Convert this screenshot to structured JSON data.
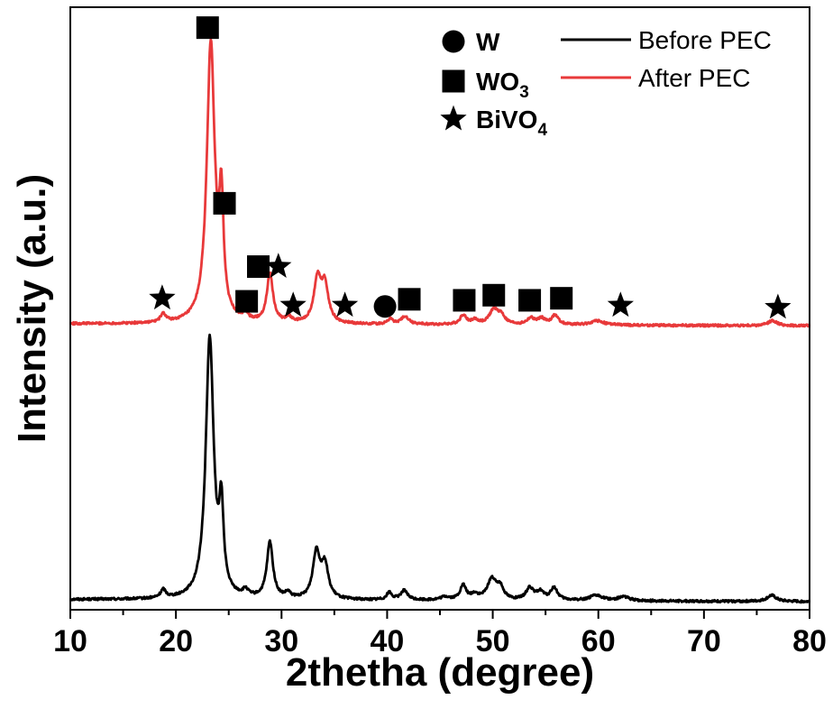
{
  "chart_data": {
    "type": "line",
    "title": "",
    "xlabel": "2thetha (degree)",
    "ylabel": "Intensity (a.u.)",
    "xlim": [
      10,
      80
    ],
    "x_ticks": [
      "10",
      "20",
      "30",
      "40",
      "50",
      "60",
      "70",
      "80"
    ],
    "y_ticks_shown": false,
    "grid": false,
    "legend": {
      "placement": "top-right",
      "lines": [
        {
          "label": "Before PEC",
          "color": "#000000"
        },
        {
          "label": "After PEC",
          "color": "#e8393a"
        }
      ],
      "markers": [
        {
          "symbol": "circle",
          "label": "W",
          "label_sub": ""
        },
        {
          "symbol": "square",
          "label": "WO",
          "label_sub": "3"
        },
        {
          "symbol": "star",
          "label": "BiVO",
          "label_sub": "4"
        }
      ]
    },
    "series": [
      {
        "name": "Before PEC",
        "color": "#000000",
        "baseline": 10,
        "baseline_slope": -2,
        "peaks": [
          {
            "x": 18.8,
            "h": 8,
            "w": 0.3
          },
          {
            "x": 23.2,
            "h": 255,
            "w": 0.45
          },
          {
            "x": 24.3,
            "h": 78,
            "w": 0.25
          },
          {
            "x": 26.6,
            "h": 6,
            "w": 0.3
          },
          {
            "x": 28.9,
            "h": 55,
            "w": 0.35
          },
          {
            "x": 30.6,
            "h": 5,
            "w": 0.3
          },
          {
            "x": 33.3,
            "h": 45,
            "w": 0.4
          },
          {
            "x": 34.1,
            "h": 32,
            "w": 0.4
          },
          {
            "x": 40.2,
            "h": 7,
            "w": 0.3
          },
          {
            "x": 41.6,
            "h": 9,
            "w": 0.4
          },
          {
            "x": 45.5,
            "h": 3,
            "w": 0.5
          },
          {
            "x": 47.2,
            "h": 14,
            "w": 0.35
          },
          {
            "x": 48.3,
            "h": 5,
            "w": 0.4
          },
          {
            "x": 49.9,
            "h": 20,
            "w": 0.5
          },
          {
            "x": 50.7,
            "h": 12,
            "w": 0.4
          },
          {
            "x": 53.5,
            "h": 12,
            "w": 0.4
          },
          {
            "x": 54.5,
            "h": 8,
            "w": 0.4
          },
          {
            "x": 55.8,
            "h": 12,
            "w": 0.4
          },
          {
            "x": 59.8,
            "h": 5,
            "w": 0.8
          },
          {
            "x": 62.4,
            "h": 4,
            "w": 0.6
          },
          {
            "x": 76.4,
            "h": 6,
            "w": 0.5
          }
        ]
      },
      {
        "name": "After PEC",
        "color": "#e8393a",
        "baseline": 280,
        "baseline_slope": -2,
        "peaks": [
          {
            "x": 18.8,
            "h": 8,
            "w": 0.3
          },
          {
            "x": 23.3,
            "h": 272,
            "w": 0.45
          },
          {
            "x": 24.3,
            "h": 105,
            "w": 0.25
          },
          {
            "x": 26.6,
            "h": 6,
            "w": 0.3
          },
          {
            "x": 28.9,
            "h": 48,
            "w": 0.35
          },
          {
            "x": 30.7,
            "h": 5,
            "w": 0.3
          },
          {
            "x": 33.4,
            "h": 42,
            "w": 0.4
          },
          {
            "x": 34.1,
            "h": 36,
            "w": 0.4
          },
          {
            "x": 40.3,
            "h": 5,
            "w": 0.3
          },
          {
            "x": 41.7,
            "h": 8,
            "w": 0.4
          },
          {
            "x": 47.2,
            "h": 9,
            "w": 0.35
          },
          {
            "x": 48.3,
            "h": 4,
            "w": 0.4
          },
          {
            "x": 50.1,
            "h": 14,
            "w": 0.5
          },
          {
            "x": 50.8,
            "h": 8,
            "w": 0.4
          },
          {
            "x": 53.6,
            "h": 6,
            "w": 0.4
          },
          {
            "x": 54.6,
            "h": 6,
            "w": 0.4
          },
          {
            "x": 55.9,
            "h": 9,
            "w": 0.4
          },
          {
            "x": 59.9,
            "h": 4,
            "w": 0.8
          },
          {
            "x": 76.5,
            "h": 5,
            "w": 0.5
          }
        ]
      }
    ],
    "peak_markers": [
      {
        "symbol": "star",
        "x": 18.7,
        "y": 305
      },
      {
        "symbol": "square",
        "x": 23.0,
        "y": 570
      },
      {
        "symbol": "square",
        "x": 24.6,
        "y": 398
      },
      {
        "symbol": "square",
        "x": 26.7,
        "y": 302
      },
      {
        "symbol": "square",
        "x": 27.8,
        "y": 336
      },
      {
        "symbol": "star",
        "x": 29.7,
        "y": 336
      },
      {
        "symbol": "star",
        "x": 31.1,
        "y": 298
      },
      {
        "symbol": "star",
        "x": 36.0,
        "y": 298
      },
      {
        "symbol": "circle",
        "x": 39.8,
        "y": 297
      },
      {
        "symbol": "square",
        "x": 42.1,
        "y": 304
      },
      {
        "symbol": "square",
        "x": 47.3,
        "y": 303
      },
      {
        "symbol": "square",
        "x": 50.1,
        "y": 308
      },
      {
        "symbol": "square",
        "x": 53.5,
        "y": 303
      },
      {
        "symbol": "square",
        "x": 56.5,
        "y": 305
      },
      {
        "symbol": "star",
        "x": 62.1,
        "y": 298
      },
      {
        "symbol": "star",
        "x": 77.0,
        "y": 296
      }
    ],
    "ylim": [
      0,
      590
    ]
  }
}
